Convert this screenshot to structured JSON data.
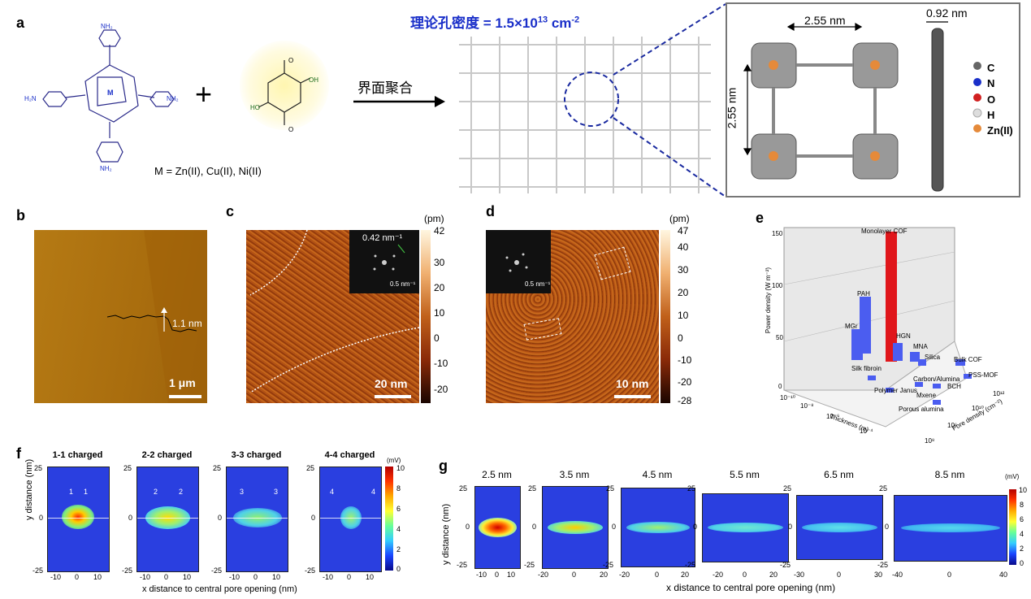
{
  "panel_labels": {
    "a": "a",
    "b": "b",
    "c": "c",
    "d": "d",
    "e": "e",
    "f": "f",
    "g": "g"
  },
  "panel_a": {
    "metal_label": "M",
    "metal_text": "M = Zn(II), Cu(II), Ni(II)",
    "plus": "+",
    "reaction": "界面聚合",
    "density_title": "理论孔密度 = 1.5×10",
    "density_exp": "13",
    "density_unit": " cm",
    "density_unit_exp": "-2",
    "dim_horizontal": "2.55 nm",
    "dim_vertical": "2.55 nm",
    "dim_thickness": "0.92 nm",
    "nh2": "NH₂",
    "h2n": "H₂N",
    "oh": "OH",
    "ho": "HO",
    "o": "O",
    "legend": [
      {
        "label": "C",
        "color": "#666666"
      },
      {
        "label": "N",
        "color": "#1a2fc9"
      },
      {
        "label": "O",
        "color": "#d12020"
      },
      {
        "label": "H",
        "color": "#dddddd"
      },
      {
        "label": "Zn(II)",
        "color": "#e58a3a"
      }
    ]
  },
  "panel_b": {
    "height_label": "1.1 nm",
    "scale": "1 μm"
  },
  "panel_c": {
    "unit": "(pm)",
    "ticks": [
      "42",
      "30",
      "20",
      "10",
      "0",
      "-10",
      "-20"
    ],
    "fft_label": "0.42 nm⁻¹",
    "fft_scale": "0.5 nm⁻¹",
    "scale": "20 nm"
  },
  "panel_d": {
    "unit": "(pm)",
    "ticks": [
      "47",
      "40",
      "30",
      "20",
      "10",
      "0",
      "-10",
      "-20",
      "-28"
    ],
    "fft_scale": "0.5 nm⁻¹",
    "scale": "10 nm"
  },
  "panel_e": {
    "y_axis": "Power density (W m⁻²)",
    "y_ticks": [
      "150",
      "100",
      "50",
      "0"
    ],
    "x_axis": "Thickness (m)",
    "x_ticks": [
      "10⁻¹⁰",
      "10⁻⁸",
      "10⁻⁶",
      "10⁻⁴"
    ],
    "z_axis": "Pore density (cm⁻²)",
    "z_ticks": [
      "10¹²",
      "10¹⁰",
      "10⁶",
      "10⁸"
    ],
    "labels": [
      "Monolayer COF",
      "PAH",
      "MGr",
      "HGN",
      "MNA",
      "Silica",
      "Bulk COF",
      "Silk fibroin",
      "Carbon/Alumina",
      "PSS-MOF",
      "BCH",
      "Polymer Janus",
      "Mxene",
      "Porous alumina"
    ]
  },
  "panel_f": {
    "titles": [
      "1-1 charged",
      "2-2 charged",
      "3-3 charged",
      "4-4 charged"
    ],
    "markers": [
      "1",
      "2",
      "3",
      "4"
    ],
    "y_axis": "y distance (nm)",
    "y_ticks": [
      "25",
      "0",
      "-25"
    ],
    "x_ticks": [
      "-10",
      "0",
      "10"
    ],
    "x_axis": "x distance to central pore opening (nm)",
    "cbar_unit": "(mV)",
    "cbar_ticks": [
      "10",
      "8",
      "6",
      "4",
      "2",
      "0"
    ]
  },
  "panel_g": {
    "titles": [
      "2.5 nm",
      "3.5 nm",
      "4.5 nm",
      "5.5 nm",
      "6.5 nm",
      "8.5 nm"
    ],
    "y_axis": "y distance (nm)",
    "y_ticks": [
      "25",
      "0",
      "-25"
    ],
    "x_ticks": [
      [
        "-10",
        "0",
        "10"
      ],
      [
        "-20",
        "0",
        "20"
      ],
      [
        "-20",
        "0",
        "20"
      ],
      [
        "-20",
        "0",
        "20"
      ],
      [
        "-30",
        "0",
        "30"
      ],
      [
        "-40",
        "0",
        "40"
      ]
    ],
    "x_axis": "x distance to central pore opening (nm)",
    "cbar_unit": "(mV)",
    "cbar_ticks": [
      "10",
      "8",
      "6",
      "4",
      "2",
      "0"
    ]
  }
}
